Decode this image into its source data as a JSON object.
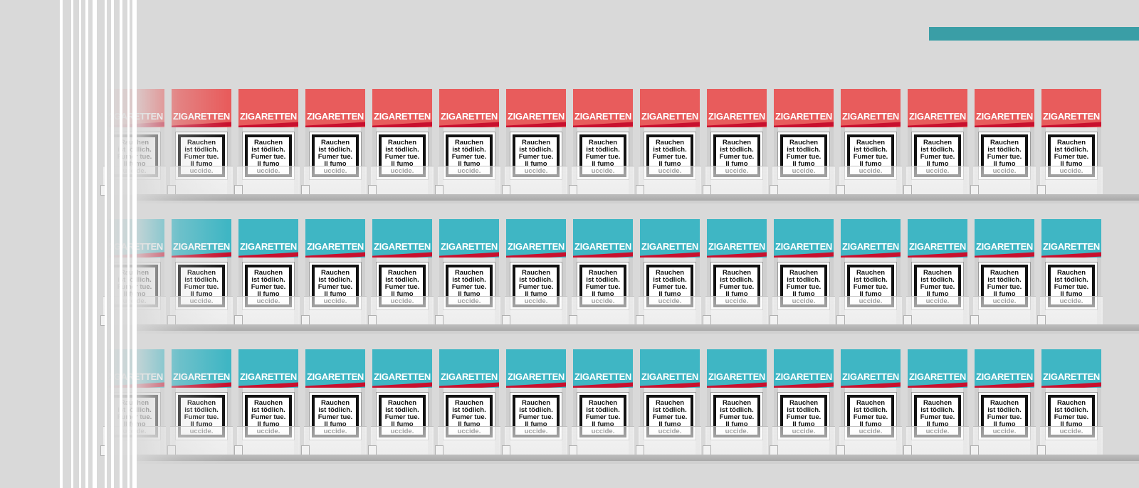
{
  "scene": {
    "accent_color": "#3a9ea6",
    "shelf_rows": [
      {
        "name": "top-shelf",
        "color": "#e85c5c"
      },
      {
        "name": "middle-shelf",
        "color": "#3fb6c4"
      },
      {
        "name": "bottom-shelf",
        "color": "#3fb6c4"
      }
    ],
    "stripe_color": "#c8102e"
  },
  "pack": {
    "brand_label": "ZIGARETTEN",
    "warning_text": "Rauchen\nist tödlich.\nFumer tue.\nIl fumo\nuccide."
  }
}
